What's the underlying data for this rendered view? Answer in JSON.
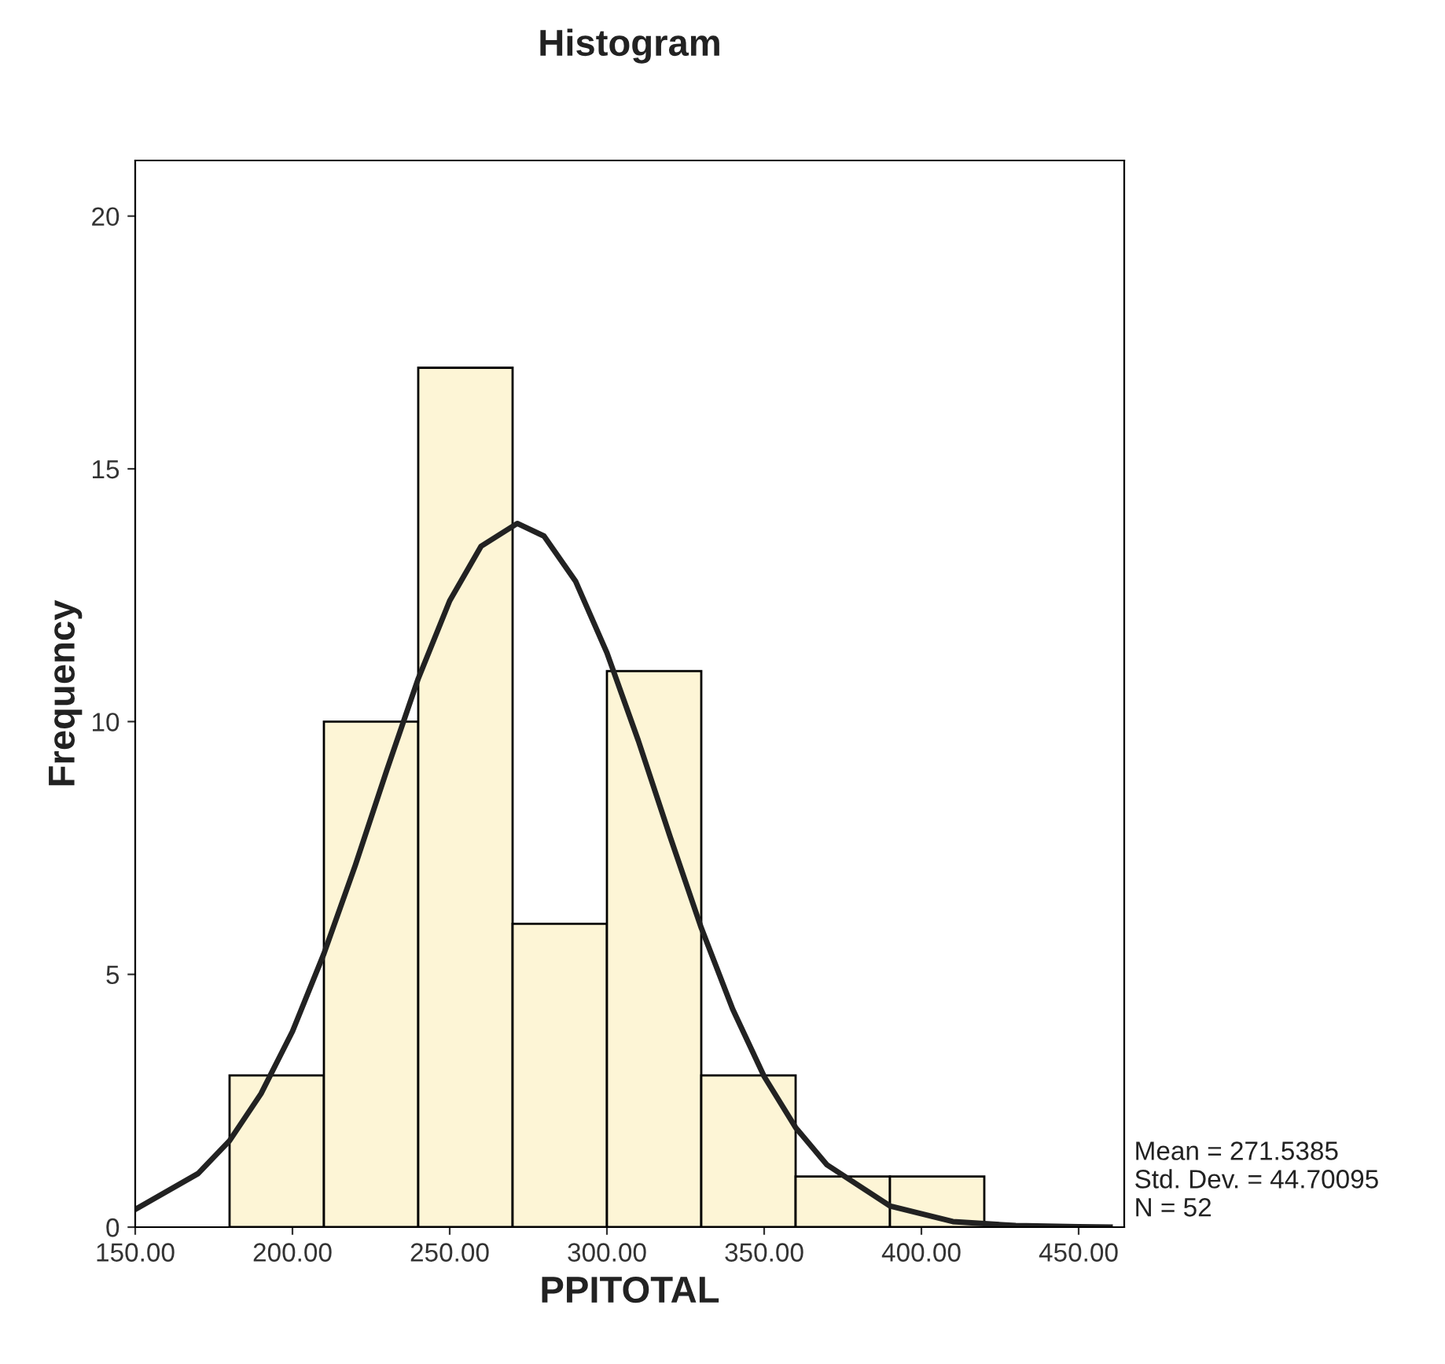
{
  "chart_data": {
    "type": "histogram",
    "title": "Histogram",
    "xlabel": "PPITOTAL",
    "ylabel": "Frequency",
    "bins": [
      180,
      210,
      240,
      270,
      300,
      330,
      360,
      390,
      420
    ],
    "values": [
      3,
      10,
      17,
      6,
      11,
      3,
      1,
      1
    ],
    "color": "#fdf5d6",
    "series": [
      {
        "type": "line",
        "color": "#222222",
        "x": [
          150,
          170,
          180,
          190,
          200,
          210,
          220,
          230,
          240,
          250,
          260,
          271.5,
          280,
          290,
          300,
          310,
          320,
          330,
          340,
          350,
          360,
          370,
          390,
          410,
          430,
          450,
          460
        ],
        "values": [
          0.35,
          1.06,
          1.71,
          2.64,
          3.87,
          5.41,
          7.16,
          9.04,
          10.85,
          12.39,
          13.47,
          13.92,
          13.67,
          12.78,
          11.36,
          9.62,
          7.74,
          5.92,
          4.31,
          2.98,
          1.97,
          1.23,
          0.42,
          0.11,
          0.03,
          0.01,
          0.0
        ]
      }
    ],
    "xlim": [
      150,
      464.5
    ],
    "ylim": [
      0,
      21.1
    ],
    "xticks": [
      {
        "value": 150,
        "label": "150.00"
      },
      {
        "value": 200,
        "label": "200.00"
      },
      {
        "value": 250,
        "label": "250.00"
      },
      {
        "value": 300,
        "label": "300.00"
      },
      {
        "value": 350,
        "label": "350.00"
      },
      {
        "value": 400,
        "label": "400.00"
      },
      {
        "value": 450,
        "label": "450.00"
      }
    ],
    "yticks": [
      0,
      5,
      10,
      15,
      20
    ],
    "grid": false,
    "annotations": [
      "Mean = 271.5385\nStd. Dev. = 44.70095\nN = 52"
    ]
  }
}
